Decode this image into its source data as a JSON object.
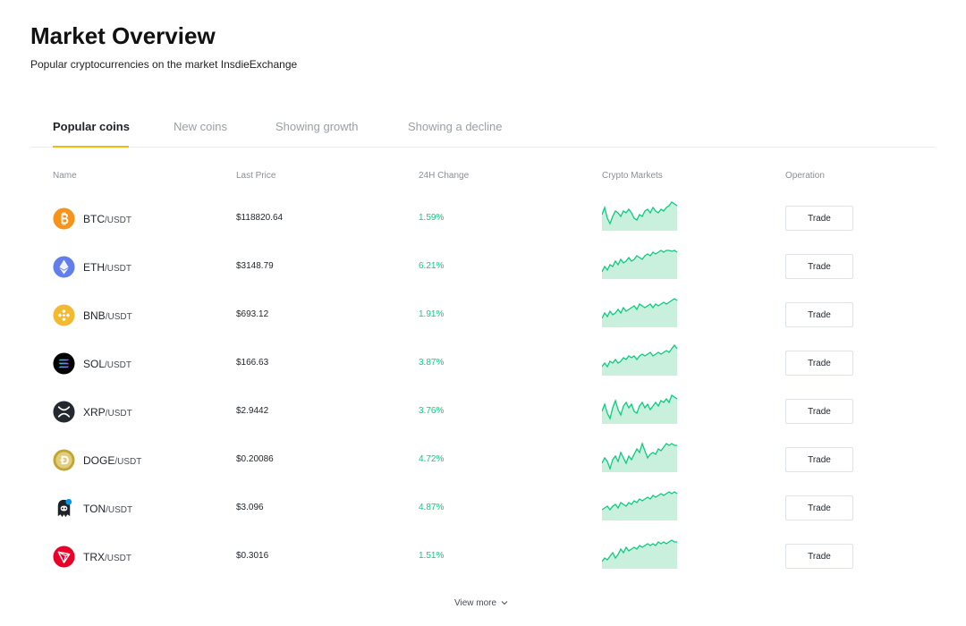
{
  "header": {
    "title": "Market Overview",
    "subtitle": "Popular cryptocurrencies on the market InsdieExchange"
  },
  "tabs": [
    {
      "label": "Popular coins",
      "active": true
    },
    {
      "label": "New coins",
      "active": false
    },
    {
      "label": "Showing growth",
      "active": false
    },
    {
      "label": "Showing a decline",
      "active": false
    }
  ],
  "table": {
    "columns": [
      "Name",
      "Last Price",
      "24H Change",
      "Crypto Markets",
      "Operation"
    ],
    "rows": [
      {
        "base": "BTC",
        "quote": "/USDT",
        "price": "$118820.64",
        "change": "1.59%",
        "icon": "bitcoin-icon",
        "trade_label": "Trade"
      },
      {
        "base": "ETH",
        "quote": "/USDT",
        "price": "$3148.79",
        "change": "6.21%",
        "icon": "ethereum-icon",
        "trade_label": "Trade"
      },
      {
        "base": "BNB",
        "quote": "/USDT",
        "price": "$693.12",
        "change": "1.91%",
        "icon": "bnb-icon",
        "trade_label": "Trade"
      },
      {
        "base": "SOL",
        "quote": "/USDT",
        "price": "$166.63",
        "change": "3.87%",
        "icon": "solana-icon",
        "trade_label": "Trade"
      },
      {
        "base": "XRP",
        "quote": "/USDT",
        "price": "$2.9442",
        "change": "3.76%",
        "icon": "xrp-icon",
        "trade_label": "Trade"
      },
      {
        "base": "DOGE",
        "quote": "/USDT",
        "price": "$0.20086",
        "change": "4.72%",
        "icon": "dogecoin-icon",
        "trade_label": "Trade"
      },
      {
        "base": "TON",
        "quote": "/USDT",
        "price": "$3.096",
        "change": "4.87%",
        "icon": "toncoin-icon",
        "trade_label": "Trade"
      },
      {
        "base": "TRX",
        "quote": "/USDT",
        "price": "$0.3016",
        "change": "1.51%",
        "icon": "tron-icon",
        "trade_label": "Trade"
      }
    ]
  },
  "footer": {
    "view_more": "View more"
  },
  "colors": {
    "accent": "#f0b90b",
    "positive": "#0ecb81",
    "spark_fill": "#c8f0dc"
  }
}
